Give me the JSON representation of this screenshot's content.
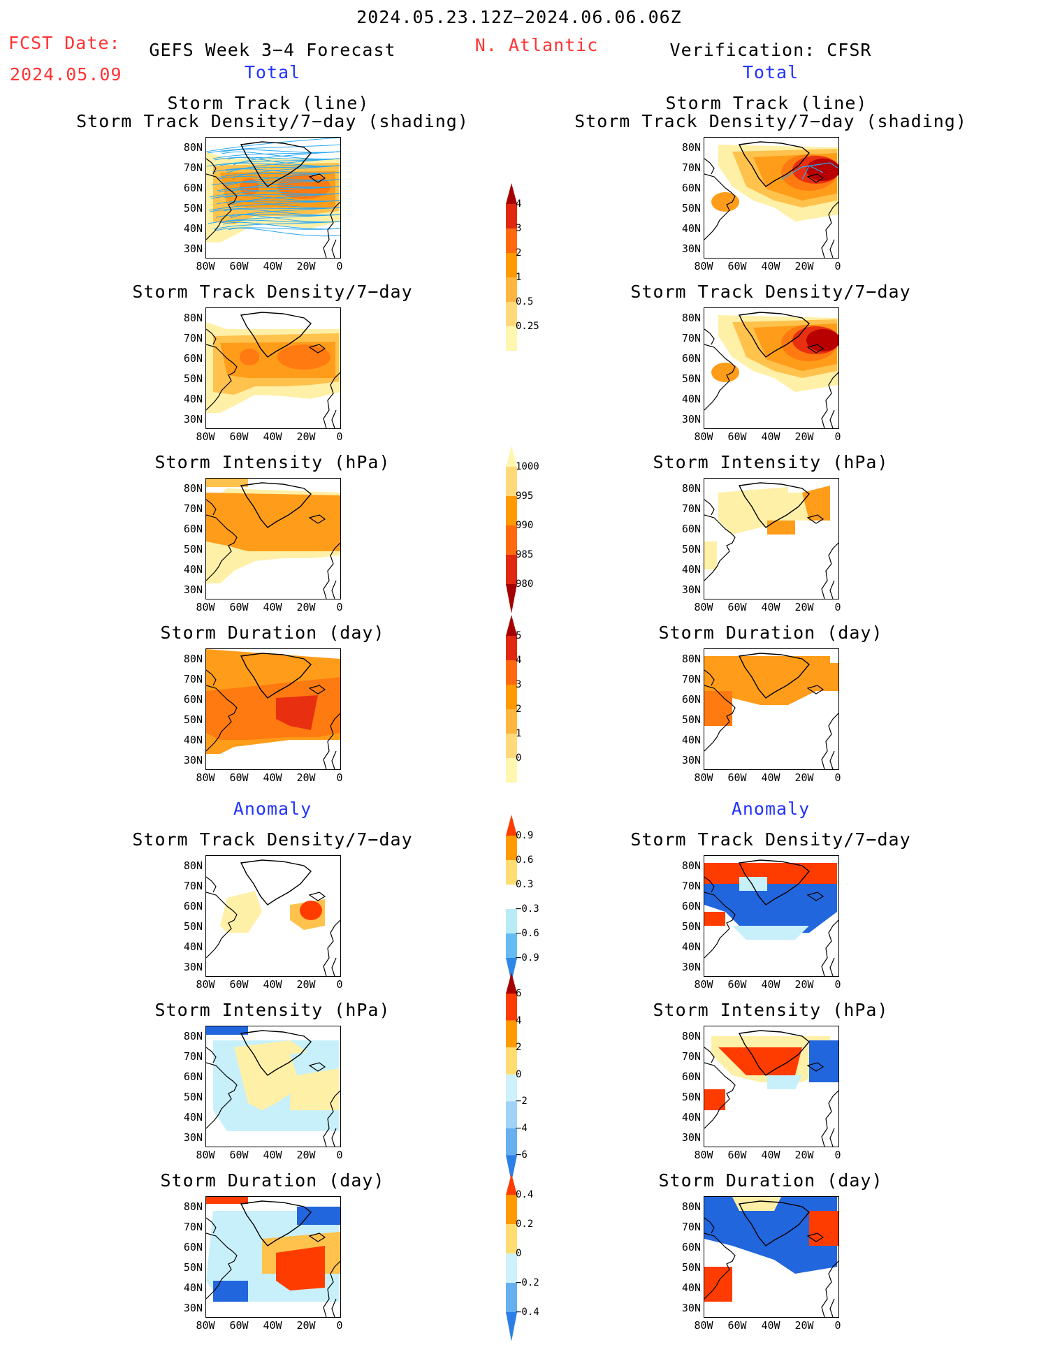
{
  "header": {
    "date_range": "2024.05.23.12Z−2024.06.06.06Z",
    "fcst_label": "FCST Date:",
    "fcst_date": "2024.05.09",
    "left_title": "GEFS Week 3−4 Forecast",
    "region": "N. Atlantic",
    "right_title": "Verification: CFSR",
    "total_label": "Total",
    "anomaly_label": "Anomaly"
  },
  "panel_titles": {
    "track_line": "Storm Track (line)",
    "track_shading": "Storm Track Density/7−day (shading)",
    "density": "Storm Track Density/7−day",
    "intensity": "Storm Intensity (hPa)",
    "duration": "Storm Duration (day)"
  },
  "axes": {
    "lat_ticks": [
      "80N",
      "70N",
      "60N",
      "50N",
      "40N",
      "30N"
    ],
    "lon_ticks": [
      "80W",
      "60W",
      "40W",
      "20W",
      "0"
    ]
  },
  "colorbars": [
    {
      "id": "density_total",
      "labels": [
        "4",
        "3",
        "2",
        "1",
        "0.5",
        "0.25"
      ],
      "colors": [
        "#a50000",
        "#e02810",
        "#ff6a10",
        "#ff9a00",
        "#ffb640",
        "#ffd97a",
        "#fff6b0"
      ]
    },
    {
      "id": "intensity_total",
      "labels": [
        "1000",
        "995",
        "990",
        "985",
        "980"
      ],
      "colors": [
        "#fff6b0",
        "#ffd97a",
        "#ff9a00",
        "#ff6a10",
        "#e02810",
        "#a50000"
      ]
    },
    {
      "id": "duration_total",
      "labels": [
        "5",
        "4",
        "3",
        "2",
        "1",
        "0"
      ],
      "colors": [
        "#a50000",
        "#e02810",
        "#ff6a10",
        "#ff9a00",
        "#ffb640",
        "#ffd97a",
        "#fff6b0"
      ]
    },
    {
      "id": "density_anom",
      "labels": [
        "0.9",
        "0.6",
        "0.3",
        "−0.3",
        "−0.6",
        "−0.9"
      ],
      "colors": [
        "#ff3c00",
        "#ff9a00",
        "#ffdd70",
        "#ffffff",
        "#b7ecf7",
        "#66bbf2",
        "#2b88e8"
      ]
    },
    {
      "id": "intensity_anom",
      "labels": [
        "6",
        "4",
        "2",
        "0",
        "−2",
        "−4",
        "−6"
      ],
      "colors": [
        "#a50000",
        "#ff3c00",
        "#ff9a00",
        "#ffdd70",
        "#cdf2fb",
        "#9fd4f7",
        "#66b0f0",
        "#2b7fe6"
      ]
    },
    {
      "id": "duration_anom",
      "labels": [
        "0.4",
        "0.2",
        "0",
        "−0.2",
        "−0.4"
      ],
      "colors": [
        "#ff3c00",
        "#ff9a00",
        "#ffdd70",
        "#cdf2fb",
        "#66b0f0",
        "#2b7fe6"
      ]
    }
  ],
  "colors": {
    "deep_red": "#b80000",
    "red": "#e83010",
    "orange": "#ff7a10",
    "amber": "#ff9d1a",
    "light_orange": "#ffc24d",
    "pale_yellow": "#fff0a8",
    "track_blue": "#2aa8f0",
    "anom_red": "#ff3c00",
    "anom_blue": "#2266dd",
    "anom_lightblue": "#c8f0fa"
  }
}
